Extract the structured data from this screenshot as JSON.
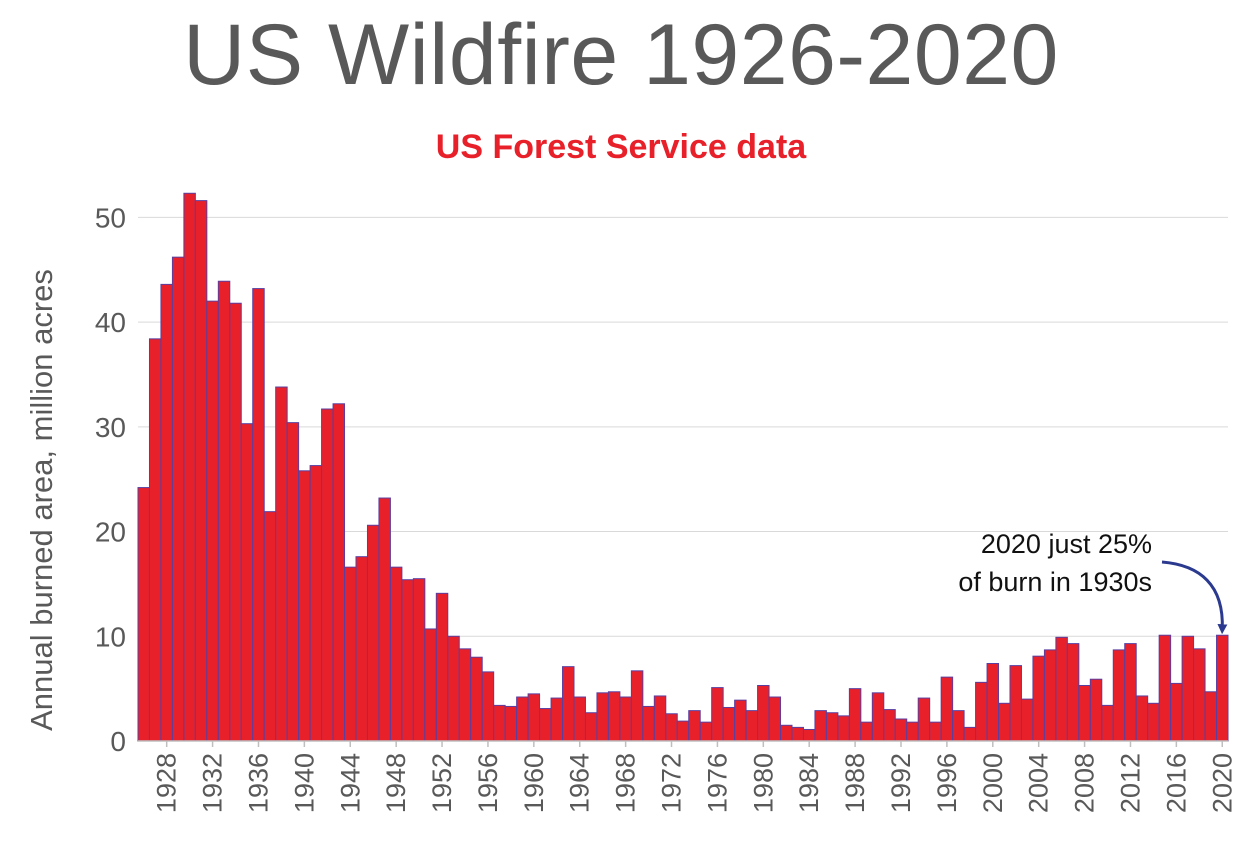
{
  "chart_data": {
    "type": "bar",
    "title": "US Wildfire 1926-2020",
    "subtitle": "US Forest Service data",
    "xlabel": "",
    "ylabel": "Annual burned area, million acres",
    "ylim": [
      0,
      55
    ],
    "yticks": [
      0,
      10,
      20,
      30,
      40,
      50
    ],
    "grid": true,
    "legend": "none",
    "bar_color": "#e8202a",
    "bar_edge_color": "#5a3fa0",
    "years": [
      1926,
      1927,
      1928,
      1929,
      1930,
      1931,
      1932,
      1933,
      1934,
      1935,
      1936,
      1937,
      1938,
      1939,
      1940,
      1941,
      1942,
      1943,
      1944,
      1945,
      1946,
      1947,
      1948,
      1949,
      1950,
      1951,
      1952,
      1953,
      1954,
      1955,
      1956,
      1957,
      1958,
      1959,
      1960,
      1961,
      1962,
      1963,
      1964,
      1965,
      1966,
      1967,
      1968,
      1969,
      1970,
      1971,
      1972,
      1973,
      1974,
      1975,
      1976,
      1977,
      1978,
      1979,
      1980,
      1981,
      1982,
      1983,
      1984,
      1985,
      1986,
      1987,
      1988,
      1989,
      1990,
      1991,
      1992,
      1993,
      1994,
      1995,
      1996,
      1997,
      1998,
      1999,
      2000,
      2001,
      2002,
      2003,
      2004,
      2005,
      2006,
      2007,
      2008,
      2009,
      2010,
      2011,
      2012,
      2013,
      2014,
      2015,
      2016,
      2017,
      2018,
      2019,
      2020
    ],
    "values": [
      24.2,
      38.4,
      43.6,
      46.2,
      52.3,
      51.6,
      42.0,
      43.9,
      41.8,
      30.3,
      43.2,
      21.9,
      33.8,
      30.4,
      25.8,
      26.3,
      31.7,
      32.2,
      16.6,
      17.6,
      20.6,
      23.2,
      16.6,
      15.4,
      15.5,
      10.7,
      14.1,
      10.0,
      8.8,
      8.0,
      6.6,
      3.4,
      3.3,
      4.2,
      4.5,
      3.1,
      4.1,
      7.1,
      4.2,
      2.7,
      4.6,
      4.7,
      4.2,
      6.7,
      3.3,
      4.3,
      2.6,
      1.9,
      2.9,
      1.8,
      5.1,
      3.2,
      3.9,
      2.9,
      5.3,
      4.2,
      1.5,
      1.3,
      1.1,
      2.9,
      2.7,
      2.4,
      5.0,
      1.8,
      4.6,
      3.0,
      2.1,
      1.8,
      4.1,
      1.8,
      6.1,
      2.9,
      1.3,
      5.6,
      7.4,
      3.6,
      7.2,
      4.0,
      8.1,
      8.7,
      9.9,
      9.3,
      5.3,
      5.9,
      3.4,
      8.7,
      9.3,
      4.3,
      3.6,
      10.1,
      5.5,
      10.0,
      8.8,
      4.7,
      10.1
    ],
    "xtick_labels": [
      "1928",
      "1932",
      "1936",
      "1940",
      "1944",
      "1948",
      "1952",
      "1956",
      "1960",
      "1964",
      "1968",
      "1972",
      "1976",
      "1980",
      "1984",
      "1988",
      "1992",
      "1996",
      "2000",
      "2004",
      "2008",
      "2012",
      "2016",
      "2020"
    ],
    "annotation": {
      "lines": [
        "2020 just 25%",
        "of burn in 1930s"
      ],
      "target_year": 2020,
      "arrow_color": "#2b3a8f"
    }
  }
}
